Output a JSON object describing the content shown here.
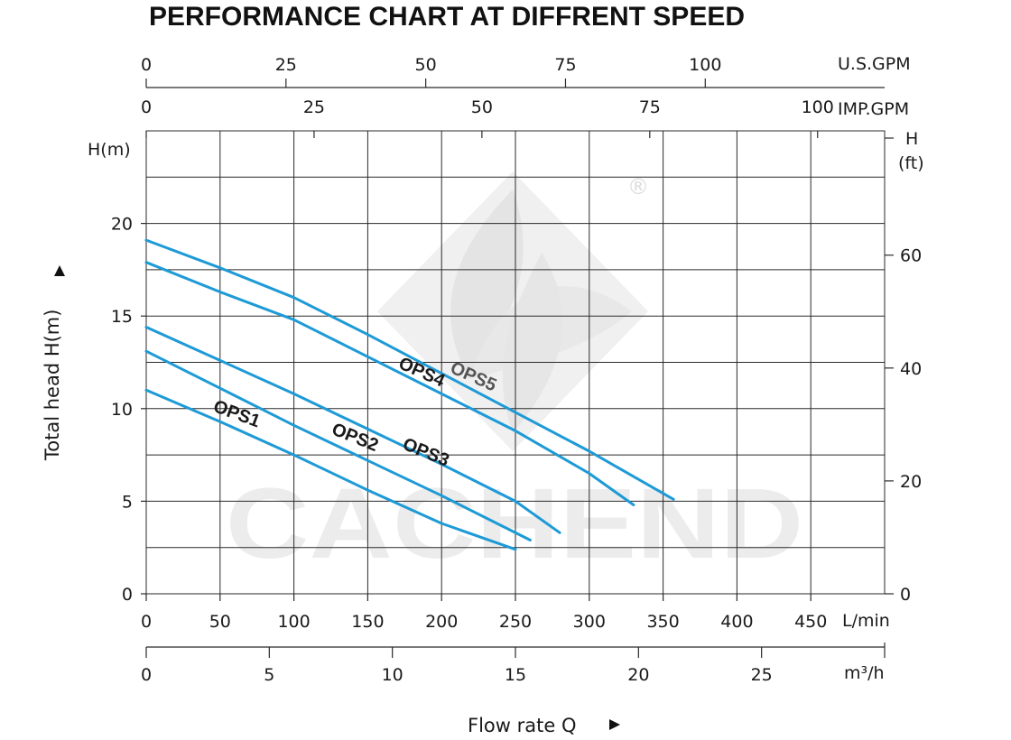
{
  "chart_data": {
    "type": "line",
    "title": "PERFORMANCE CHART AT DIFFRENT SPEED",
    "xlabel": "Flow rate  Q",
    "ylabel": "Total  head H(m)",
    "axes": {
      "bottom_lmin": {
        "unit": "L/min",
        "ticks": [
          "0",
          "50",
          "100",
          "150",
          "200",
          "250",
          "300",
          "350",
          "400",
          "450"
        ],
        "range": [
          0,
          500
        ]
      },
      "bottom_m3h": {
        "unit": "m³/h",
        "ticks": [
          "0",
          "5",
          "10",
          "15",
          "20",
          "25"
        ],
        "range": [
          0,
          30
        ]
      },
      "top_usgpm": {
        "unit": "U.S.GPM",
        "ticks": [
          "0",
          "25",
          "50",
          "75",
          "100"
        ]
      },
      "top_impgpm": {
        "unit": "IMP.GPM",
        "ticks": [
          "0",
          "25",
          "50",
          "75",
          "100"
        ]
      },
      "left_m": {
        "unit": "H(m)",
        "ticks": [
          "0",
          "5",
          "10",
          "15",
          "20"
        ],
        "range": [
          0,
          25
        ]
      },
      "right_ft": {
        "unit_line1": "H",
        "unit_line2": "(ft)",
        "ticks": [
          "0",
          "20",
          "40",
          "60"
        ]
      }
    },
    "grid": true,
    "series": [
      {
        "name": "OPS1",
        "x_unit": "L/min",
        "points": [
          [
            0,
            11.0
          ],
          [
            50,
            9.3
          ],
          [
            100,
            7.5
          ],
          [
            150,
            5.6
          ],
          [
            200,
            3.8
          ],
          [
            250,
            2.4
          ]
        ]
      },
      {
        "name": "OPS2",
        "x_unit": "L/min",
        "points": [
          [
            0,
            13.1
          ],
          [
            50,
            11.1
          ],
          [
            100,
            9.1
          ],
          [
            150,
            7.2
          ],
          [
            200,
            5.3
          ],
          [
            260,
            2.9
          ]
        ]
      },
      {
        "name": "OPS3",
        "x_unit": "L/min",
        "points": [
          [
            0,
            14.4
          ],
          [
            50,
            12.6
          ],
          [
            100,
            10.8
          ],
          [
            150,
            8.9
          ],
          [
            200,
            7.0
          ],
          [
            250,
            5.0
          ],
          [
            280,
            3.3
          ]
        ]
      },
      {
        "name": "OPS4",
        "x_unit": "L/min",
        "points": [
          [
            0,
            17.9
          ],
          [
            50,
            16.3
          ],
          [
            100,
            14.8
          ],
          [
            150,
            12.8
          ],
          [
            200,
            10.8
          ],
          [
            250,
            8.8
          ],
          [
            300,
            6.5
          ],
          [
            330,
            4.8
          ]
        ]
      },
      {
        "name": "OPS5",
        "x_unit": "L/min",
        "points": [
          [
            0,
            19.1
          ],
          [
            50,
            17.6
          ],
          [
            100,
            16.0
          ],
          [
            150,
            14.0
          ],
          [
            200,
            11.9
          ],
          [
            250,
            9.8
          ],
          [
            300,
            7.7
          ],
          [
            357,
            5.1
          ]
        ]
      }
    ],
    "colors": {
      "curve": "#1e9ad6",
      "label_dark": "#1a1a1a",
      "label_alt": "#555555"
    }
  },
  "watermark": {
    "brand_text": "CACHEND",
    "registered_mark": "®"
  }
}
